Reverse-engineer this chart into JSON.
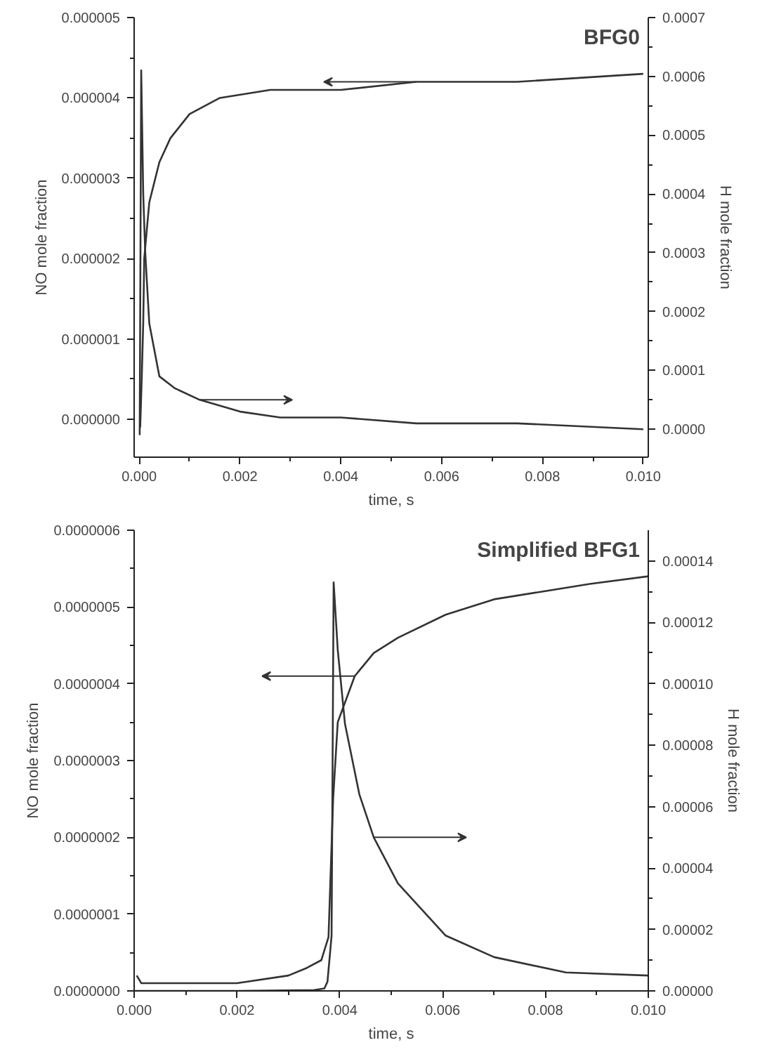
{
  "chart_data": [
    {
      "type": "line",
      "title": "BFG0",
      "xlabel": "time, s",
      "ylabel": "NO mole fraction",
      "y2label": "H mole fraction",
      "xlim": [
        -0.0001,
        0.0101
      ],
      "ylim": [
        -4.7e-07,
        5e-06
      ],
      "y2lim": [
        -4.75e-05,
        0.0007
      ],
      "xticks": [
        {
          "value": 0,
          "label": "0.000"
        },
        {
          "value": 0.001,
          "label": null
        },
        {
          "value": 0.002,
          "label": "0.002"
        },
        {
          "value": 0.003,
          "label": null
        },
        {
          "value": 0.004,
          "label": "0.004"
        },
        {
          "value": 0.005,
          "label": null
        },
        {
          "value": 0.006,
          "label": "0.006"
        },
        {
          "value": 0.007,
          "label": null
        },
        {
          "value": 0.008,
          "label": "0.008"
        },
        {
          "value": 0.009,
          "label": null
        },
        {
          "value": 0.01,
          "label": "0.010"
        }
      ],
      "yticks": [
        {
          "value": 0,
          "label": "0.000000"
        },
        {
          "value": 5e-07,
          "label": null
        },
        {
          "value": 1e-06,
          "label": "0.000001"
        },
        {
          "value": 1.5e-06,
          "label": null
        },
        {
          "value": 2e-06,
          "label": "0.000002"
        },
        {
          "value": 2.5e-06,
          "label": null
        },
        {
          "value": 3e-06,
          "label": "0.000003"
        },
        {
          "value": 3.5e-06,
          "label": null
        },
        {
          "value": 4e-06,
          "label": "0.000004"
        },
        {
          "value": 4.5e-06,
          "label": null
        },
        {
          "value": 5e-06,
          "label": "0.000005"
        }
      ],
      "y2ticks": [
        {
          "value": 0,
          "label": "0.0000"
        },
        {
          "value": 5e-05,
          "label": null
        },
        {
          "value": 0.0001,
          "label": "0.0001"
        },
        {
          "value": 0.00015,
          "label": null
        },
        {
          "value": 0.0002,
          "label": "0.0002"
        },
        {
          "value": 0.00025,
          "label": null
        },
        {
          "value": 0.0003,
          "label": "0.0003"
        },
        {
          "value": 0.00035,
          "label": null
        },
        {
          "value": 0.0004,
          "label": "0.0004"
        },
        {
          "value": 0.00045,
          "label": null
        },
        {
          "value": 0.0005,
          "label": "0.0005"
        },
        {
          "value": 0.00055,
          "label": null
        },
        {
          "value": 0.0006,
          "label": "0.0006"
        },
        {
          "value": 0.00065,
          "label": null
        },
        {
          "value": 0.0007,
          "label": "0.0007"
        }
      ],
      "series": [
        {
          "color": "#333333",
          "x": [
            2e-05,
            5e-05,
            8e-05,
            0.0001,
            0.0002,
            0.0004,
            0.00062,
            0.001,
            0.0016,
            0.0026,
            0.004,
            0.0055,
            0.0075,
            0.01
          ],
          "values": [
            -1e-07,
            5e-07,
            1.2e-06,
            2e-06,
            2.7e-06,
            3.2e-06,
            3.5e-06,
            3.8e-06,
            4e-06,
            4.1e-06,
            4.1e-06,
            4.2e-06,
            4.2e-06,
            4.3e-06
          ]
        },
        {
          "color": "#333333",
          "axis": "y2",
          "x": [
            1e-05,
            4e-05,
            8e-05,
            0.00012,
            0.0002,
            0.0004,
            0.0007,
            0.0012,
            0.002,
            0.0028,
            0.004,
            0.0055,
            0.0075,
            0.01
          ],
          "values": [
            -1e-05,
            0.00061,
            0.0004,
            0.0003,
            0.00018,
            9e-05,
            7e-05,
            5e-05,
            3e-05,
            2e-05,
            2e-05,
            1e-05,
            1e-05,
            0
          ]
        }
      ]
    },
    {
      "type": "line",
      "title": "Simplified BFG1",
      "xlabel": "time, s",
      "ylabel": "NO mole fraction",
      "y2label": "H mole fraction",
      "xlim": [
        0,
        0.01
      ],
      "ylim": [
        0,
        6e-07
      ],
      "y2lim": [
        0,
        0.00015
      ],
      "xticks": [
        {
          "value": 0,
          "label": "0.000"
        },
        {
          "value": 0.001,
          "label": null
        },
        {
          "value": 0.002,
          "label": "0.002"
        },
        {
          "value": 0.003,
          "label": null
        },
        {
          "value": 0.004,
          "label": "0.004"
        },
        {
          "value": 0.005,
          "label": null
        },
        {
          "value": 0.006,
          "label": "0.006"
        },
        {
          "value": 0.007,
          "label": null
        },
        {
          "value": 0.008,
          "label": "0.008"
        },
        {
          "value": 0.009,
          "label": null
        },
        {
          "value": 0.01,
          "label": "0.010"
        }
      ],
      "yticks": [
        {
          "value": 0,
          "label": "0.0000000"
        },
        {
          "value": 5e-08,
          "label": null
        },
        {
          "value": 1e-07,
          "label": "0.0000001"
        },
        {
          "value": 1.5e-07,
          "label": null
        },
        {
          "value": 2e-07,
          "label": "0.0000002"
        },
        {
          "value": 2.5e-07,
          "label": null
        },
        {
          "value": 3e-07,
          "label": "0.0000003"
        },
        {
          "value": 3.5e-07,
          "label": null
        },
        {
          "value": 4e-07,
          "label": "0.0000004"
        },
        {
          "value": 4.5e-07,
          "label": null
        },
        {
          "value": 5e-07,
          "label": "0.0000005"
        },
        {
          "value": 5.5e-07,
          "label": null
        },
        {
          "value": 6e-07,
          "label": "0.0000006"
        }
      ],
      "y2ticks": [
        {
          "value": 0,
          "label": "0.00000"
        },
        {
          "value": 1e-05,
          "label": null
        },
        {
          "value": 2e-05,
          "label": "0.00002"
        },
        {
          "value": 3e-05,
          "label": null
        },
        {
          "value": 4e-05,
          "label": "0.00004"
        },
        {
          "value": 5e-05,
          "label": null
        },
        {
          "value": 6e-05,
          "label": "0.00006"
        },
        {
          "value": 7e-05,
          "label": null
        },
        {
          "value": 8e-05,
          "label": "0.00008"
        },
        {
          "value": 9e-05,
          "label": null
        },
        {
          "value": 0.0001,
          "label": "0.00010"
        },
        {
          "value": 0.00011,
          "label": null
        },
        {
          "value": 0.00012,
          "label": "0.00012"
        },
        {
          "value": 0.00013,
          "label": null
        },
        {
          "value": 0.00014,
          "label": "0.00014"
        }
      ],
      "series": [
        {
          "color": "#333333",
          "x": [
            5e-05,
            0.00014,
            0.0011,
            0.002,
            0.003,
            0.00336,
            0.00364,
            0.00378,
            0.00387,
            0.00396,
            0.00429,
            0.00466,
            0.00513,
            0.00606,
            0.007,
            0.00793,
            0.00886,
            0.01
          ],
          "values": [
            2e-08,
            1e-08,
            1e-08,
            1e-08,
            2e-08,
            3e-08,
            4e-08,
            7e-08,
            2.5e-07,
            3.5e-07,
            4.1e-07,
            4.4e-07,
            4.6e-07,
            4.9e-07,
            5.1e-07,
            5.2e-07,
            5.3e-07,
            5.4e-07
          ]
        },
        {
          "color": "#333333",
          "axis": "y2",
          "x": [
            0,
            0.002,
            0.0035,
            0.0037,
            0.00376,
            0.00384,
            0.00388,
            0.00396,
            0.0041,
            0.00438,
            0.00466,
            0.00513,
            0.00606,
            0.007,
            0.0084,
            0.01
          ],
          "values": [
            0,
            0,
            3e-07,
            8e-07,
            3e-06,
            1.8e-05,
            0.000133,
            0.000111,
            8.7e-05,
            6.4e-05,
            5e-05,
            3.5e-05,
            1.8e-05,
            1.1e-05,
            6e-06,
            5e-06
          ]
        }
      ]
    }
  ]
}
